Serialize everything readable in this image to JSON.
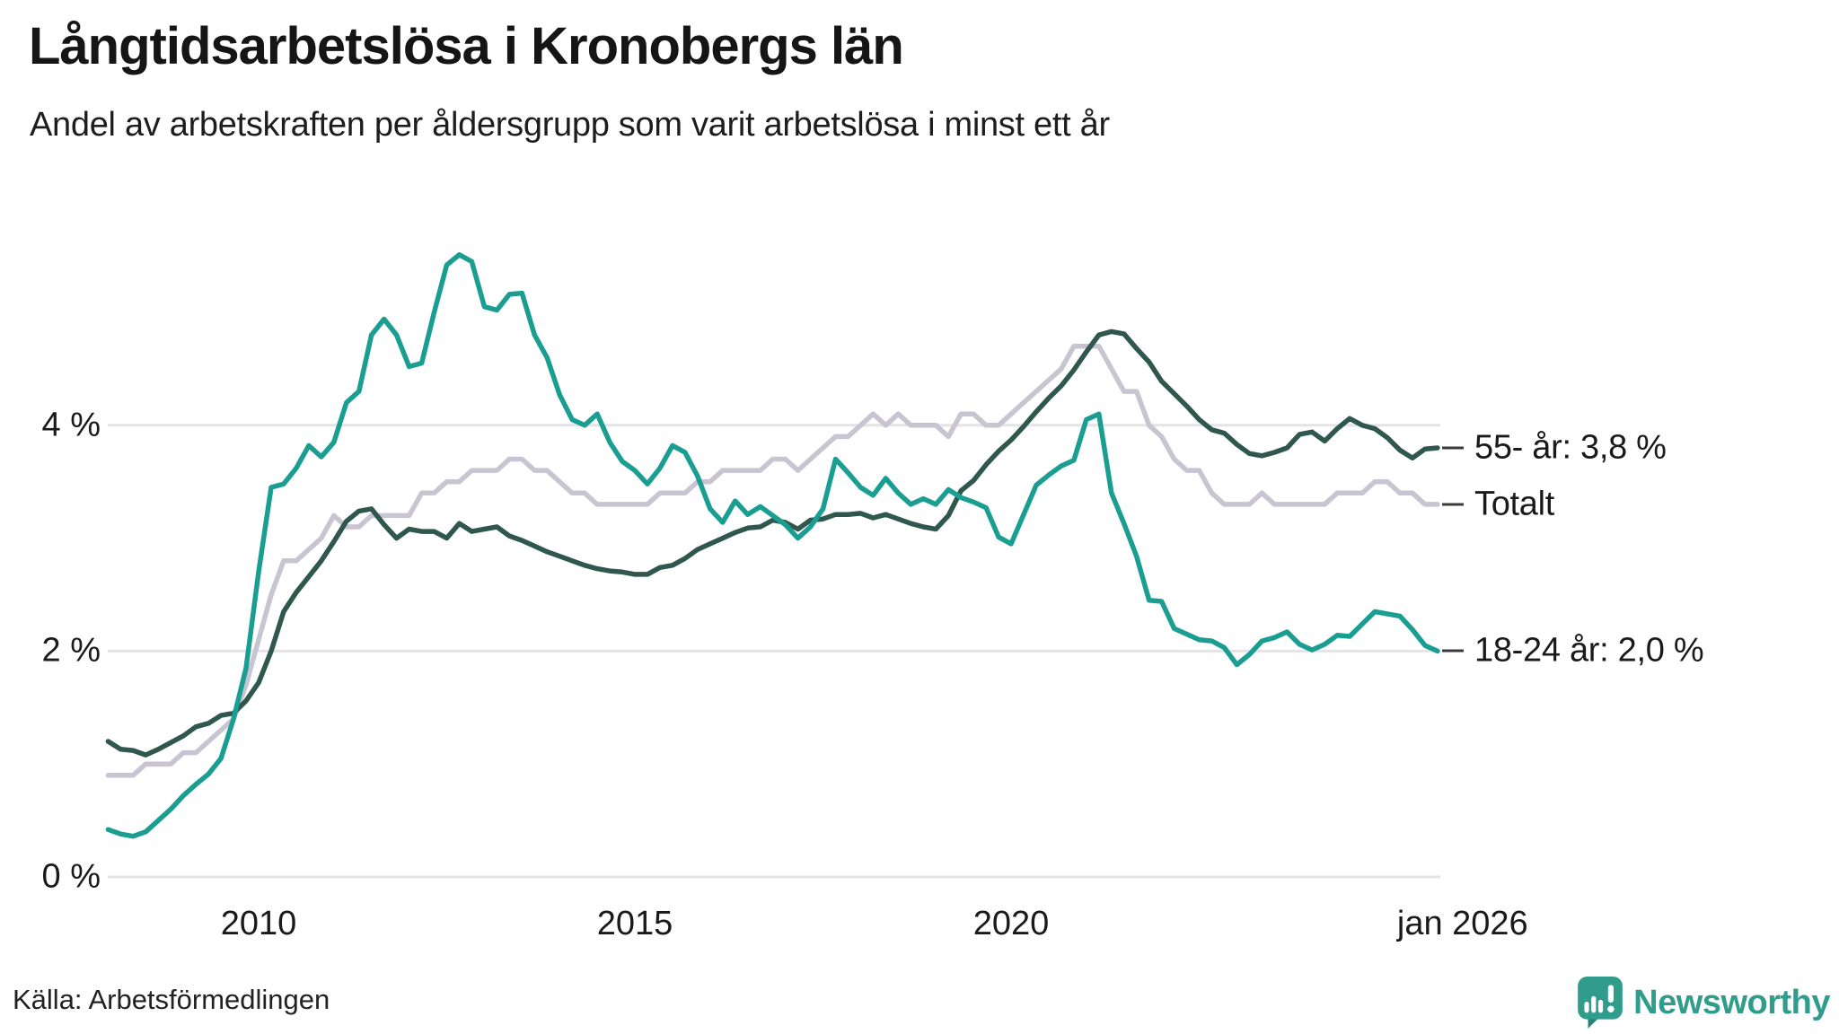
{
  "header": {
    "title": "Långtidsarbetslösa i Kronobergs län",
    "subtitle": "Andel av arbetskraften per åldersgrupp som varit arbetslösa i minst ett år"
  },
  "footer": {
    "source": "Källa: Arbetsförmedlingen",
    "brand": "Newsworthy"
  },
  "colors": {
    "teal_line": "#1a9e91",
    "dark_green_line": "#2f574d",
    "lavender_line": "#c8c4d2",
    "gridline": "#e4e4e6",
    "text": "#1a1a1a",
    "end_label_dash": "#3b3b3b",
    "brand_teal": "#2f9c8c",
    "background": "#ffffff"
  },
  "chart_data": {
    "type": "line",
    "title": "Långtidsarbetslösa i Kronobergs län",
    "subtitle": "Andel av arbetskraften per åldersgrupp som varit arbetslösa i minst ett år",
    "grid": "horizontal",
    "legend_position": "right-end-labels",
    "xlim": [
      2008.0,
      2026.3
    ],
    "ylim": [
      0,
      5.8
    ],
    "x_start_year": 2008.0,
    "x_step_years": 0.16667,
    "y_ticks": [
      {
        "y": 0,
        "label": "0 %"
      },
      {
        "y": 2,
        "label": "2 %"
      },
      {
        "y": 4,
        "label": "4 %"
      }
    ],
    "x_ticks": [
      {
        "x": 2010,
        "label": "2010"
      },
      {
        "x": 2015,
        "label": "2015"
      },
      {
        "x": 2020,
        "label": "2020"
      },
      {
        "x": 2026,
        "label": "jan 2026"
      }
    ],
    "series": [
      {
        "id": "totalt",
        "name": "Totalt",
        "end_label": "Totalt",
        "end_value": 3.3,
        "color": "#c8c4d2",
        "values": [
          0.9,
          0.9,
          0.9,
          1.0,
          1.0,
          1.0,
          1.1,
          1.1,
          1.2,
          1.3,
          1.4,
          1.7,
          2.1,
          2.5,
          2.8,
          2.8,
          2.9,
          3.0,
          3.2,
          3.1,
          3.1,
          3.2,
          3.2,
          3.2,
          3.2,
          3.4,
          3.4,
          3.5,
          3.5,
          3.6,
          3.6,
          3.6,
          3.7,
          3.7,
          3.6,
          3.6,
          3.5,
          3.4,
          3.4,
          3.3,
          3.3,
          3.3,
          3.3,
          3.3,
          3.4,
          3.4,
          3.4,
          3.5,
          3.5,
          3.6,
          3.6,
          3.6,
          3.6,
          3.7,
          3.7,
          3.6,
          3.7,
          3.8,
          3.9,
          3.9,
          4.0,
          4.1,
          4.0,
          4.1,
          4.0,
          4.0,
          4.0,
          3.9,
          4.1,
          4.1,
          4.0,
          4.0,
          4.1,
          4.2,
          4.3,
          4.4,
          4.5,
          4.7,
          4.7,
          4.7,
          4.5,
          4.3,
          4.3,
          4.0,
          3.9,
          3.7,
          3.6,
          3.6,
          3.4,
          3.3,
          3.3,
          3.3,
          3.4,
          3.3,
          3.3,
          3.3,
          3.3,
          3.3,
          3.4,
          3.4,
          3.4,
          3.5,
          3.5,
          3.4,
          3.4,
          3.3,
          3.3
        ]
      },
      {
        "id": "55-ar",
        "name": "55- år",
        "end_label": "55- år: 3,8 %",
        "end_value": 3.8,
        "color": "#2f574d",
        "values": [
          1.2,
          1.13,
          1.12,
          1.08,
          1.13,
          1.19,
          1.25,
          1.33,
          1.36,
          1.43,
          1.45,
          1.56,
          1.72,
          2.0,
          2.35,
          2.52,
          2.66,
          2.8,
          2.97,
          3.15,
          3.24,
          3.26,
          3.12,
          3.0,
          3.08,
          3.06,
          3.06,
          3.0,
          3.13,
          3.06,
          3.08,
          3.1,
          3.02,
          2.98,
          2.93,
          2.88,
          2.84,
          2.8,
          2.76,
          2.73,
          2.71,
          2.7,
          2.68,
          2.68,
          2.74,
          2.76,
          2.82,
          2.9,
          2.95,
          3.0,
          3.05,
          3.09,
          3.1,
          3.16,
          3.14,
          3.08,
          3.16,
          3.17,
          3.21,
          3.21,
          3.22,
          3.18,
          3.21,
          3.17,
          3.13,
          3.1,
          3.08,
          3.2,
          3.42,
          3.51,
          3.65,
          3.77,
          3.87,
          3.99,
          4.12,
          4.24,
          4.35,
          4.49,
          4.65,
          4.8,
          4.83,
          4.81,
          4.68,
          4.56,
          4.39,
          4.28,
          4.17,
          4.05,
          3.96,
          3.93,
          3.83,
          3.75,
          3.73,
          3.76,
          3.8,
          3.92,
          3.94,
          3.86,
          3.97,
          4.06,
          4.0,
          3.97,
          3.89,
          3.78,
          3.71,
          3.79,
          3.8
        ]
      },
      {
        "id": "18-24-ar",
        "name": "18-24 år",
        "end_label": "18-24 år: 2,0 %",
        "end_value": 2.0,
        "color": "#1a9e91",
        "values": [
          0.42,
          0.38,
          0.36,
          0.4,
          0.5,
          0.6,
          0.72,
          0.82,
          0.91,
          1.05,
          1.4,
          1.85,
          2.7,
          3.45,
          3.48,
          3.62,
          3.82,
          3.72,
          3.85,
          4.2,
          4.3,
          4.8,
          4.94,
          4.8,
          4.52,
          4.55,
          5.0,
          5.42,
          5.51,
          5.45,
          5.05,
          5.02,
          5.16,
          5.17,
          4.8,
          4.6,
          4.27,
          4.05,
          4.0,
          4.1,
          3.85,
          3.68,
          3.6,
          3.48,
          3.62,
          3.82,
          3.76,
          3.55,
          3.26,
          3.14,
          3.33,
          3.21,
          3.28,
          3.2,
          3.12,
          3.0,
          3.1,
          3.26,
          3.7,
          3.58,
          3.45,
          3.38,
          3.53,
          3.4,
          3.3,
          3.35,
          3.3,
          3.43,
          3.36,
          3.32,
          3.27,
          3.01,
          2.95,
          3.21,
          3.47,
          3.56,
          3.64,
          3.69,
          4.05,
          4.1,
          3.4,
          3.13,
          2.84,
          2.45,
          2.44,
          2.2,
          2.15,
          2.1,
          2.09,
          2.03,
          1.88,
          1.97,
          2.09,
          2.12,
          2.17,
          2.06,
          2.01,
          2.06,
          2.14,
          2.13,
          2.24,
          2.35,
          2.33,
          2.31,
          2.19,
          2.05,
          2.0
        ]
      }
    ]
  }
}
